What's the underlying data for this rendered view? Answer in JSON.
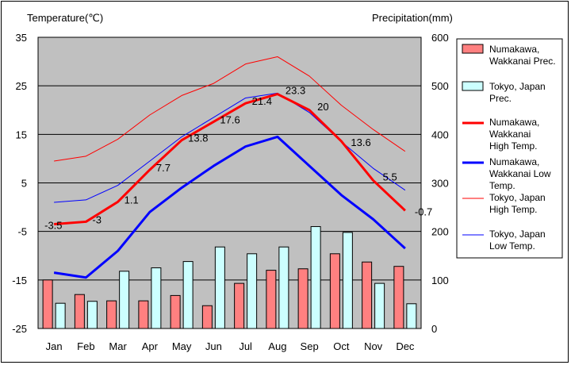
{
  "chart_data": {
    "type": "bar",
    "left_axis_title": "Temperature(℃)",
    "right_axis_title": "Precipitation(mm)",
    "categories": [
      "Jan",
      "Feb",
      "Mar",
      "Apr",
      "May",
      "Jun",
      "Jul",
      "Aug",
      "Sep",
      "Oct",
      "Nov",
      "Dec"
    ],
    "left_axis": {
      "ticks": [
        "35",
        "25",
        "15",
        "5",
        "-5",
        "-15",
        "-25"
      ],
      "range": [
        -25,
        35
      ]
    },
    "right_axis": {
      "ticks": [
        "600",
        "500",
        "400",
        "300",
        "200",
        "100",
        "0"
      ],
      "range": [
        0,
        600
      ]
    },
    "grid": true,
    "legend_position": "right",
    "colors": {
      "plot_bg": "#c0c0c0",
      "numakawa_prec": "#ff8080",
      "tokyo_prec": "#ccffff",
      "numakawa_high": "#ff0000",
      "numakawa_low": "#0000ff",
      "tokyo_high": "#ff0000",
      "tokyo_low": "#0000ff"
    },
    "series": [
      {
        "key": "numakawa_prec",
        "kind": "bar",
        "axis": "right",
        "name": "Numakawa, Wakkanai Prec.",
        "values": [
          100,
          70,
          57,
          57,
          68,
          47,
          93,
          120,
          123,
          154,
          137,
          128
        ]
      },
      {
        "key": "tokyo_prec",
        "kind": "bar",
        "axis": "right",
        "name": "Tokyo, Japan Prec.",
        "values": [
          52,
          56,
          118,
          125,
          138,
          168,
          154,
          168,
          210,
          198,
          93,
          51
        ]
      },
      {
        "key": "numakawa_high",
        "kind": "line",
        "axis": "left",
        "name": "Numakawa, Wakkanai High Temp.",
        "values": [
          -3.5,
          -3,
          1.1,
          7.7,
          13.8,
          17.6,
          21.4,
          23.3,
          20,
          13.6,
          5.5,
          -0.7
        ],
        "labels": [
          "-3.5",
          "-3",
          "1.1",
          "7.7",
          "13.8",
          "17.6",
          "21.4",
          "23.3",
          "20",
          "13.6",
          "5.5",
          "-0.7"
        ]
      },
      {
        "key": "numakawa_low",
        "kind": "line",
        "axis": "left",
        "name": "Numakawa, Wakkanai Low Temp.",
        "values": [
          -13.5,
          -14.5,
          -9,
          -1,
          4,
          8.5,
          12.5,
          14.5,
          8.5,
          2.5,
          -2.5,
          -8.5
        ]
      },
      {
        "key": "tokyo_high",
        "kind": "line",
        "axis": "left",
        "name": "Tokyo, Japan High Temp.",
        "values": [
          9.5,
          10.5,
          14,
          19,
          23,
          25.5,
          29.5,
          31,
          27,
          21,
          16,
          11.5
        ]
      },
      {
        "key": "tokyo_low",
        "kind": "line",
        "axis": "left",
        "name": "Tokyo, Japan Low Temp.",
        "values": [
          1,
          1.5,
          4.5,
          9.5,
          14.5,
          18.5,
          22.5,
          23.5,
          19.5,
          13.5,
          8,
          3.5
        ]
      }
    ],
    "legend": [
      {
        "key": "numakawa_prec",
        "lines": [
          "Numakawa,",
          "Wakkanai Prec."
        ]
      },
      {
        "key": "tokyo_prec",
        "lines": [
          "Tokyo, Japan",
          "Prec."
        ]
      },
      {
        "key": "numakawa_high",
        "lines": [
          "Numakawa,",
          "Wakkanai",
          "High Temp."
        ]
      },
      {
        "key": "numakawa_low",
        "lines": [
          "Numakawa,",
          "Wakkanai Low",
          "Temp."
        ]
      },
      {
        "key": "tokyo_high",
        "lines": [
          "Tokyo, Japan",
          "High Temp."
        ]
      },
      {
        "key": "tokyo_low",
        "lines": [
          "Tokyo, Japan",
          "Low Temp."
        ]
      }
    ]
  }
}
